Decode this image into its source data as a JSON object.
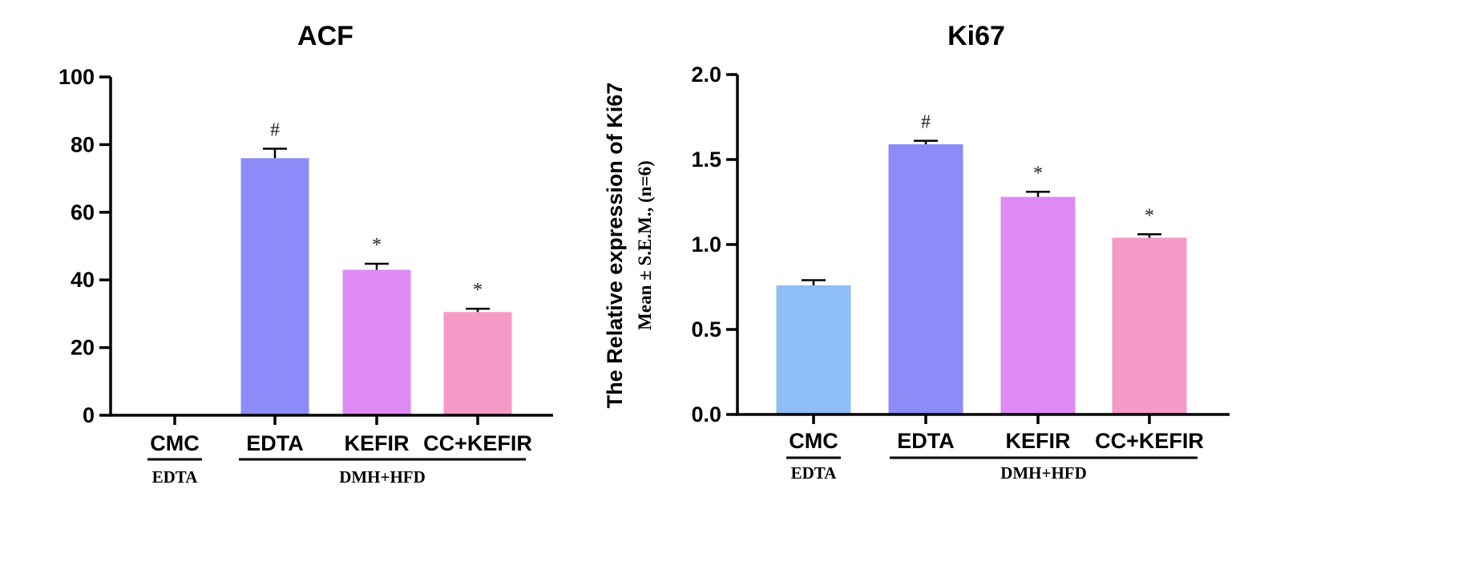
{
  "colors": {
    "CMC": "#8fbdf5",
    "EDTA": "#8c8cf8",
    "KEFIR": "#de8af5",
    "CC+KEFIR": "#f59ac6"
  },
  "chart_data": [
    {
      "type": "bar",
      "title": "ACF",
      "ylabel": "",
      "ylabel_sub": "",
      "categories": [
        "CMC",
        "EDTA",
        "KEFIR",
        "CC+KEFIR"
      ],
      "values": [
        0,
        76,
        43,
        30.5
      ],
      "errors": [
        0,
        2.8,
        1.8,
        1.0
      ],
      "significance": [
        "",
        "#",
        "*",
        "*"
      ],
      "ylim": [
        0,
        100
      ],
      "yticks": [
        0,
        20,
        40,
        60,
        80,
        100
      ],
      "ytick_labels": [
        "0",
        "20",
        "40",
        "60",
        "80",
        "100"
      ],
      "groups": [
        {
          "label": "EDTA",
          "from": 0,
          "to": 0
        },
        {
          "label": "DMH+HFD",
          "from": 1,
          "to": 3
        }
      ]
    },
    {
      "type": "bar",
      "title": "Ki67",
      "ylabel": "The Relative expression of Ki67",
      "ylabel_sub": "Mean ± S.E.M., (n=6)",
      "categories": [
        "CMC",
        "EDTA",
        "KEFIR",
        "CC+KEFIR"
      ],
      "values": [
        0.76,
        1.59,
        1.28,
        1.04
      ],
      "errors": [
        0.03,
        0.02,
        0.03,
        0.02
      ],
      "significance": [
        "",
        "#",
        "*",
        "*"
      ],
      "ylim": [
        0,
        2.0
      ],
      "yticks": [
        0,
        0.5,
        1.0,
        1.5,
        2.0
      ],
      "ytick_labels": [
        "0.0",
        "0.5",
        "1.0",
        "1.5",
        "2.0"
      ],
      "groups": [
        {
          "label": "EDTA",
          "from": 0,
          "to": 0
        },
        {
          "label": "DMH+HFD",
          "from": 1,
          "to": 3
        }
      ]
    }
  ]
}
